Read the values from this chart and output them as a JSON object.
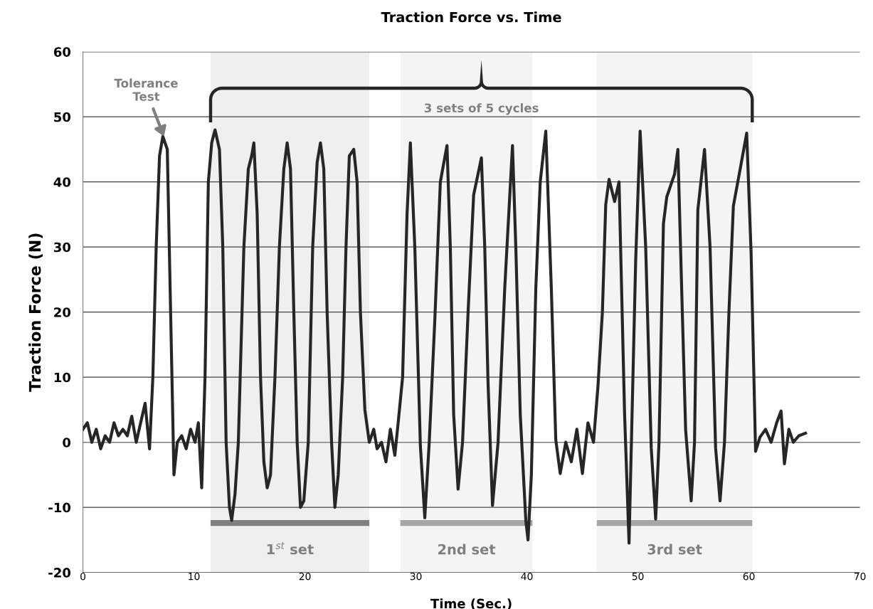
{
  "chart_data": {
    "type": "line",
    "title": "Traction Force vs. Time",
    "xlabel": "Time (Sec.)",
    "ylabel": "Traction Force (N)",
    "series": [
      {
        "color": "#262626",
        "x": [
          0,
          0.4,
          0.8,
          1.2,
          1.6,
          2.0,
          2.4,
          2.8,
          3.2,
          3.6,
          4.0,
          4.4,
          4.8,
          5.2,
          5.6,
          6.0,
          6.3,
          6.6,
          6.9,
          7.2,
          7.6,
          7.9,
          8.2,
          8.5,
          8.9,
          9.3,
          9.7,
          10.1,
          10.4,
          10.7,
          11.0,
          11.3,
          11.6,
          11.9,
          12.3,
          12.6,
          12.9,
          13.2,
          13.4,
          13.7,
          14.0,
          14.5,
          14.9,
          15.2,
          15.4,
          15.7,
          16.0,
          16.3,
          16.6,
          16.9,
          17.3,
          17.7,
          18.1,
          18.4,
          18.7,
          19.0,
          19.3,
          19.6,
          19.9,
          20.3,
          20.7,
          21.1,
          21.4,
          21.7,
          22.0,
          22.4,
          22.7,
          23.0,
          23.4,
          23.7,
          24.0,
          24.4,
          24.7,
          25.0,
          25.4,
          25.8,
          26.2,
          26.5,
          26.9,
          27.3,
          27.7,
          28.1,
          28.4,
          28.8,
          29.2,
          29.5,
          29.9,
          30.4,
          30.8,
          31.2,
          31.7,
          32.2,
          32.8,
          33.1,
          33.4,
          33.8,
          34.2,
          34.7,
          35.2,
          35.9,
          36.2,
          36.5,
          36.9,
          37.4,
          38.0,
          38.7,
          39.0,
          39.4,
          39.9,
          40.1,
          40.4,
          40.8,
          41.2,
          41.7,
          42.2,
          42.6,
          43.0,
          43.5,
          44.0,
          44.5,
          45.0,
          45.5,
          46.0,
          46.4,
          46.8,
          47.1,
          47.4,
          47.9,
          48.3,
          48.8,
          49.2,
          49.8,
          50.2,
          50.7,
          51.2,
          51.6,
          51.9,
          52.3,
          52.6,
          53.3,
          53.6,
          54.0,
          54.3,
          54.8,
          55.1,
          55.4,
          56.0,
          56.5,
          57.0,
          57.4,
          57.8,
          58.2,
          58.6,
          59.3,
          59.8,
          60.2,
          60.6,
          61.0,
          61.5,
          62.0,
          62.5,
          62.9,
          63.2,
          63.6,
          64.0,
          64.5,
          65.1
        ],
        "values": [
          2,
          3,
          0,
          2,
          -1,
          1,
          0,
          3,
          1,
          2,
          1,
          4,
          0,
          3,
          6,
          -1,
          10,
          30,
          44,
          47,
          45,
          20,
          -5,
          0,
          1,
          -1,
          2,
          0,
          3,
          -7,
          10,
          40,
          46,
          48,
          45,
          30,
          0,
          -10,
          -12,
          -8,
          0,
          30,
          42,
          44,
          46,
          35,
          10,
          -3,
          -7,
          -5,
          10,
          30,
          42,
          46,
          42,
          20,
          0,
          -10,
          -9,
          0,
          30,
          43,
          46,
          42,
          20,
          0,
          -10,
          -5,
          10,
          30,
          44,
          45,
          40,
          20,
          5,
          0,
          2,
          -1,
          0,
          -3,
          2,
          -2,
          3,
          10,
          35,
          46,
          30,
          -0.5,
          -11.6,
          0,
          18.7,
          40,
          45.6,
          30,
          4.3,
          -7.2,
          0,
          20,
          38,
          43.7,
          30,
          9,
          -9.7,
          0,
          23.6,
          45.6,
          30,
          4.3,
          -12,
          -15,
          -5,
          23.6,
          40,
          47.8,
          23.6,
          0.4,
          -4.8,
          0,
          -3,
          2,
          -4.8,
          3,
          0,
          8.6,
          20,
          36.5,
          40.4,
          37,
          40,
          4.3,
          -15.5,
          28,
          47.8,
          30,
          -0.9,
          -11.8,
          0,
          33.6,
          37.7,
          41.2,
          45,
          20,
          1.9,
          -9,
          0,
          35.7,
          45,
          30,
          -0.9,
          -9,
          0,
          20,
          36.3,
          42.8,
          47.5,
          29,
          -1.4,
          0.8,
          2,
          0,
          3,
          4.8,
          -3.3,
          2,
          0,
          1,
          1.4
        ]
      }
    ],
    "xlim": [
      0,
      70
    ],
    "xticks": [
      0,
      10,
      20,
      30,
      40,
      50,
      60,
      70
    ],
    "ylim": [
      -20,
      60
    ],
    "yticks": [
      -20,
      -10,
      0,
      10,
      20,
      30,
      40,
      50,
      60
    ],
    "grid": "y",
    "marker": "none",
    "line_style": "solid",
    "annotations": [
      {
        "text": "Tolerance\nTest",
        "x": 7.3,
        "y": 47
      },
      "3 sets of 5 cycles"
    ],
    "bands": [
      {
        "axis": "x",
        "from": 11.5,
        "to": 25.8,
        "label": "1$^{st}$ set",
        "color": "#7f7f7f"
      },
      {
        "axis": "x",
        "from": 28.6,
        "to": 40.5,
        "label": "2nd set",
        "color": "#a6a6a6"
      },
      {
        "axis": "x",
        "from": 46.3,
        "to": 60.3,
        "label": "3rd set",
        "color": "#a6a6a6"
      }
    ]
  }
}
